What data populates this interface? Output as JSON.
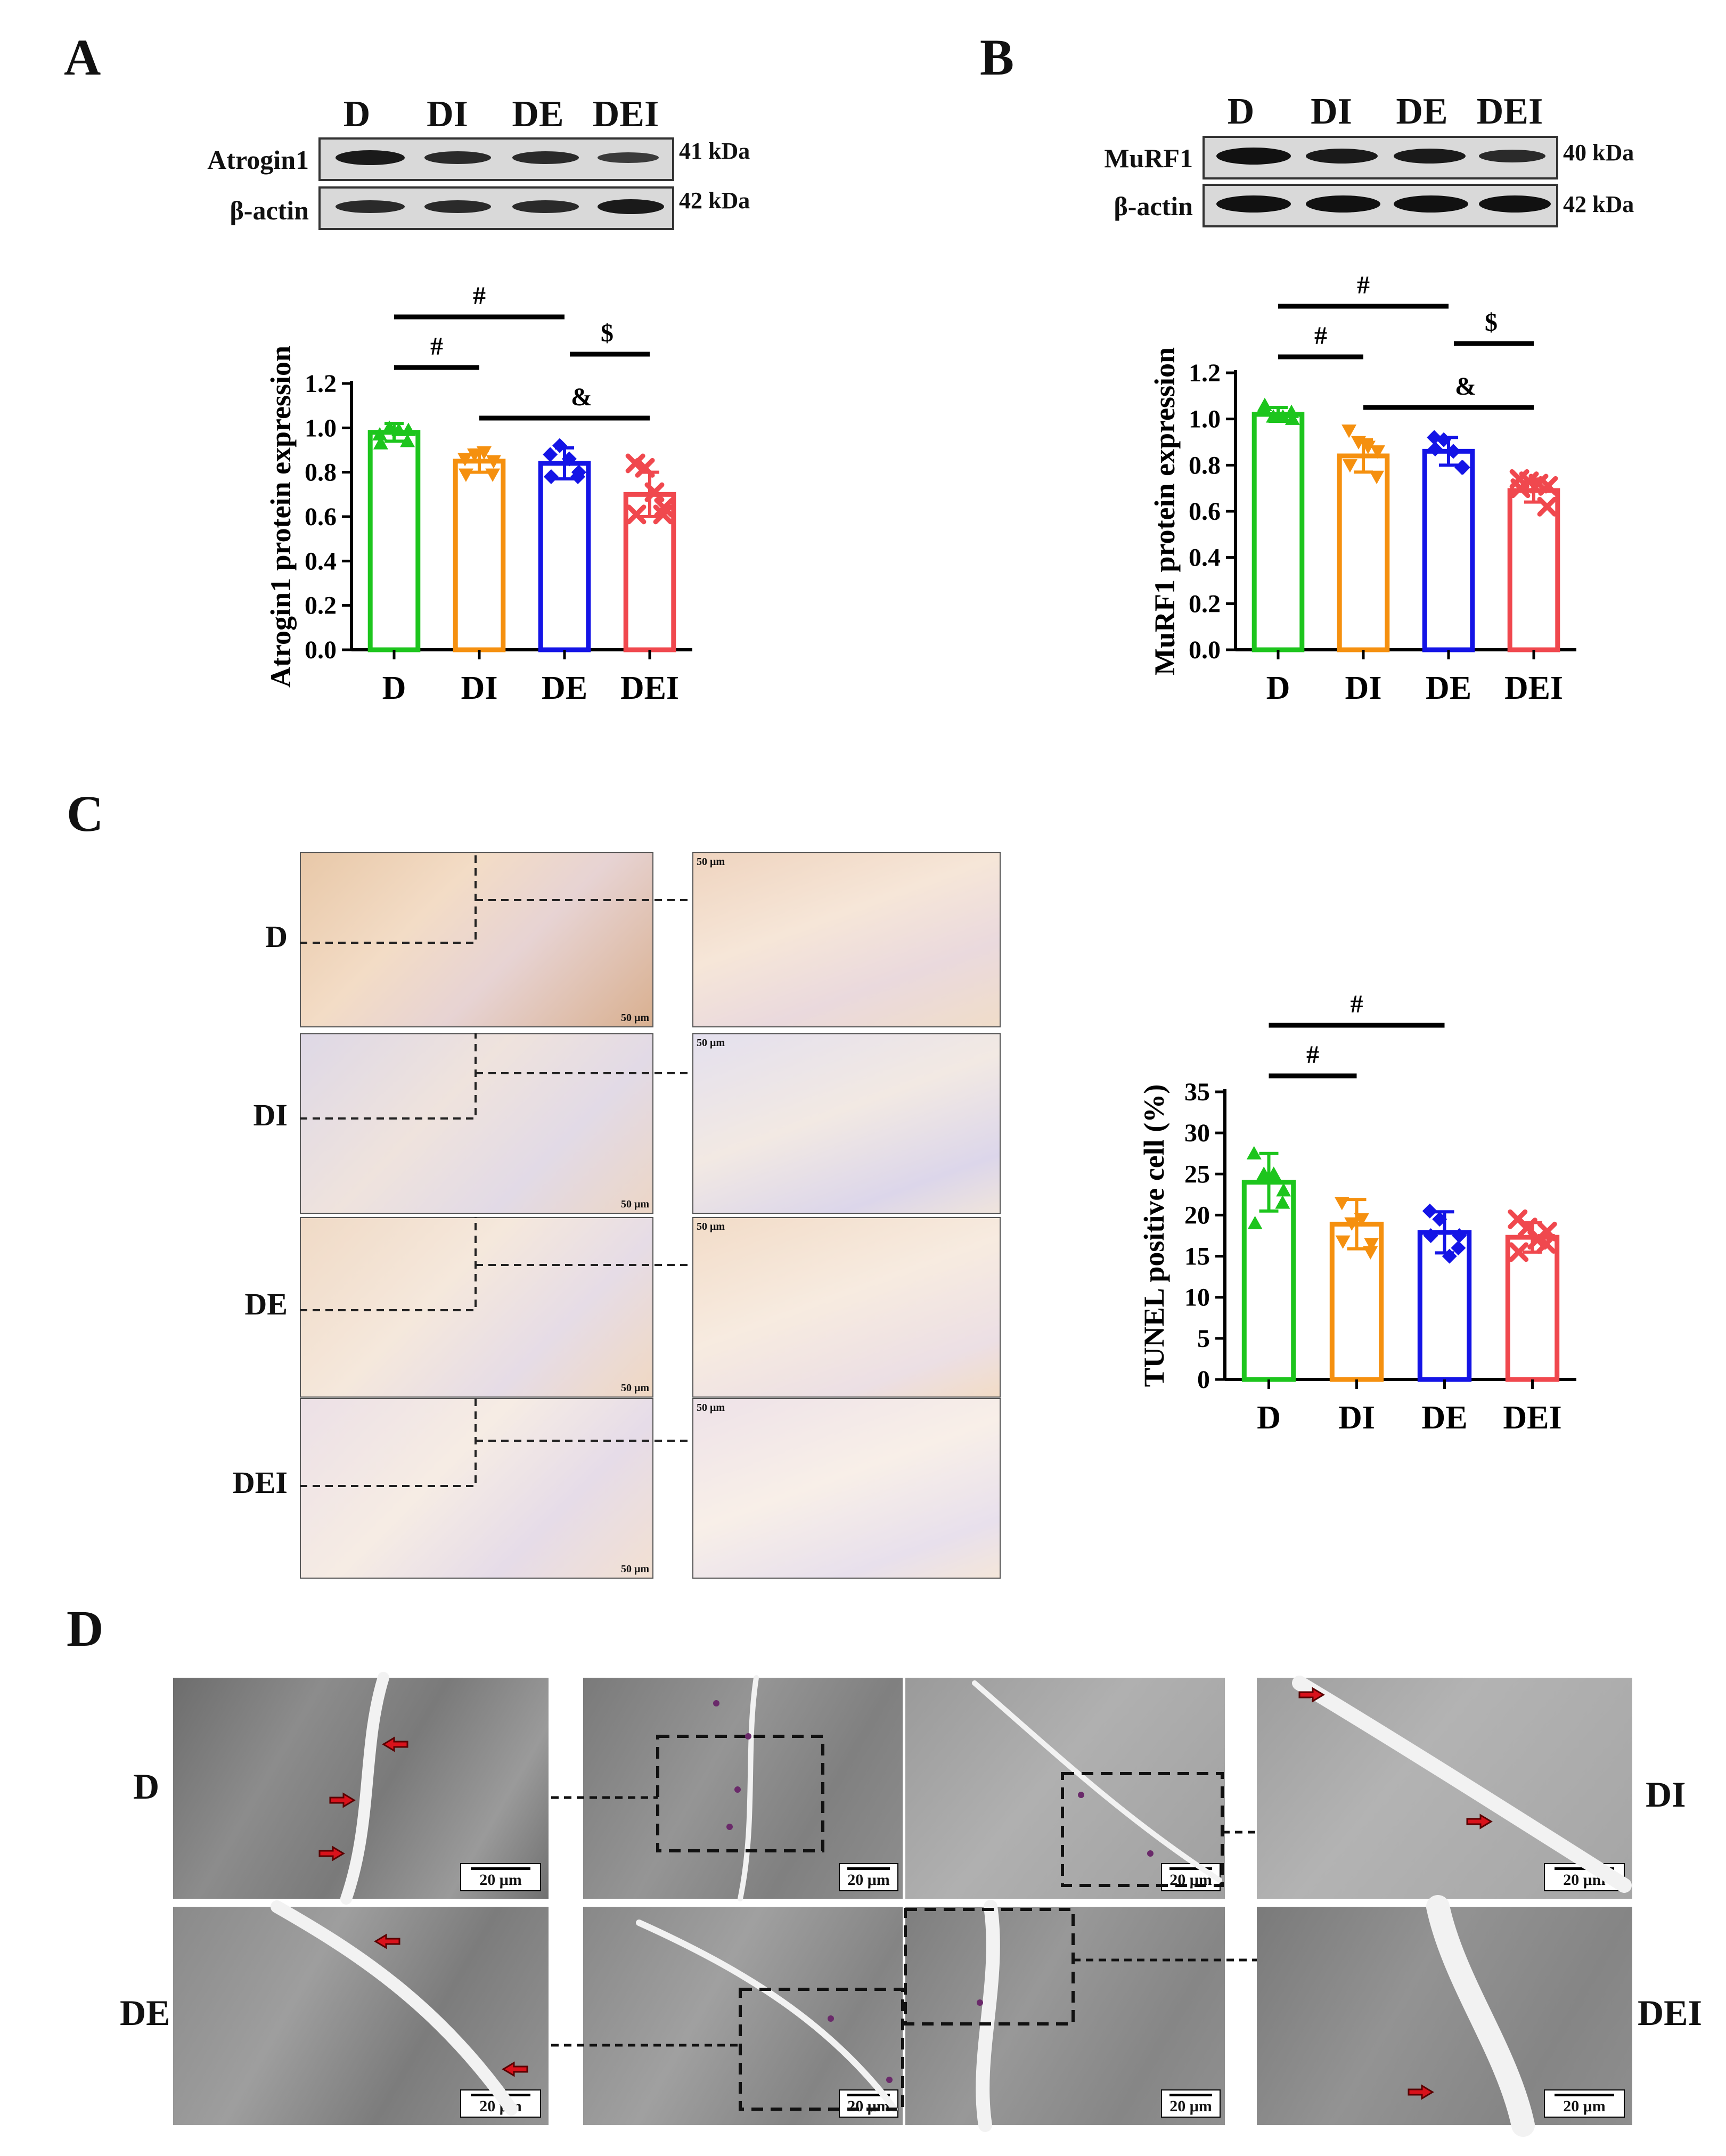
{
  "panels": {
    "a": "A",
    "b": "B",
    "c": "C",
    "d": "D"
  },
  "groups": [
    "D",
    "DI",
    "DE",
    "DEI"
  ],
  "blots": {
    "a": {
      "target": "Atrogin1",
      "control": "β-actin",
      "target_kda": "41 kDa",
      "control_kda": "42 kDa"
    },
    "b": {
      "target": "MuRF1",
      "control": "β-actin",
      "target_kda": "40 kDa",
      "control_kda": "42 kDa"
    }
  },
  "sig": {
    "hash": "#",
    "dollar": "$",
    "amp": "&"
  },
  "panel_c_rows": [
    "D",
    "DI",
    "DE",
    "DEI"
  ],
  "scale_50": "50 μm",
  "panel_d_labels": {
    "top_left": "D",
    "top_right": "DI",
    "bottom_left": "DE",
    "bottom_right": "DEI"
  },
  "scale_20": "20 μm",
  "colors": {
    "D": "#1dc51d",
    "DI": "#f5900f",
    "DE": "#1414e6",
    "DEI": "#f0484e"
  },
  "chart_data": [
    {
      "type": "bar",
      "title": "",
      "xlabel": "",
      "ylabel": "Atrogin1 protein expression",
      "categories": [
        "D",
        "DI",
        "DE",
        "DEI"
      ],
      "values": [
        0.98,
        0.85,
        0.84,
        0.7
      ],
      "errors": [
        0.04,
        0.05,
        0.07,
        0.1
      ],
      "points": [
        [
          0.97,
          1.0,
          0.99,
          0.94,
          0.93,
          0.99
        ],
        [
          0.86,
          0.88,
          0.85,
          0.79,
          0.79,
          0.89
        ],
        [
          0.88,
          0.92,
          0.8,
          0.78,
          0.78,
          0.86
        ],
        [
          0.84,
          0.82,
          0.64,
          0.61,
          0.61,
          0.71
        ]
      ],
      "markers": [
        "triangle-up",
        "triangle-down",
        "diamond",
        "x"
      ],
      "ylim": [
        0,
        1.2
      ],
      "yticks": [
        "0.0",
        "0.2",
        "0.4",
        "0.6",
        "0.8",
        "1.0",
        "1.2"
      ],
      "comparisons": [
        {
          "from": 0,
          "to": 1,
          "symbol": "#"
        },
        {
          "from": 0,
          "to": 2,
          "symbol": "#"
        },
        {
          "from": 2,
          "to": 3,
          "symbol": "$"
        },
        {
          "from": 1,
          "to": 3,
          "symbol": "&"
        }
      ]
    },
    {
      "type": "bar",
      "title": "",
      "xlabel": "",
      "ylabel": "MuRF1 protein expression",
      "categories": [
        "D",
        "DI",
        "DE",
        "DEI"
      ],
      "values": [
        1.02,
        0.84,
        0.86,
        0.69
      ],
      "errors": [
        0.03,
        0.07,
        0.06,
        0.05
      ],
      "points": [
        [
          1.05,
          1.01,
          1.0,
          1.03,
          1.06,
          1.01
        ],
        [
          0.95,
          0.9,
          0.86,
          0.75,
          0.8,
          0.88
        ],
        [
          0.92,
          0.91,
          0.79,
          0.79,
          0.87,
          0.86
        ],
        [
          0.74,
          0.73,
          0.71,
          0.62,
          0.7,
          0.72
        ]
      ],
      "markers": [
        "triangle-up",
        "triangle-down",
        "diamond",
        "x"
      ],
      "ylim": [
        0,
        1.2
      ],
      "yticks": [
        "0.0",
        "0.2",
        "0.4",
        "0.6",
        "0.8",
        "1.0",
        "1.2"
      ],
      "comparisons": [
        {
          "from": 0,
          "to": 1,
          "symbol": "#"
        },
        {
          "from": 0,
          "to": 2,
          "symbol": "#"
        },
        {
          "from": 2,
          "to": 3,
          "symbol": "$"
        },
        {
          "from": 1,
          "to": 3,
          "symbol": "&"
        }
      ]
    },
    {
      "type": "bar",
      "title": "",
      "xlabel": "",
      "ylabel": "TUNEL positive cell (%)",
      "categories": [
        "D",
        "DI",
        "DE",
        "DEI"
      ],
      "values": [
        24.0,
        18.9,
        17.9,
        17.3
      ],
      "errors": [
        3.5,
        3.0,
        2.5,
        1.8
      ],
      "points": [
        [
          27.5,
          25.0,
          23.0,
          21.5,
          19.0,
          25.0
        ],
        [
          21.5,
          19.0,
          16.5,
          15.5,
          16.8,
          19.5
        ],
        [
          20.5,
          19.5,
          17.5,
          16.0,
          17.5,
          15.0
        ],
        [
          19.5,
          18.5,
          18.0,
          16.5,
          15.5,
          17.0
        ]
      ],
      "markers": [
        "triangle-up",
        "triangle-down",
        "diamond",
        "x"
      ],
      "ylim": [
        0,
        35
      ],
      "yticks": [
        "0",
        "5",
        "10",
        "15",
        "20",
        "25",
        "30",
        "35"
      ],
      "comparisons": [
        {
          "from": 0,
          "to": 1,
          "symbol": "#"
        },
        {
          "from": 0,
          "to": 2,
          "symbol": "#"
        }
      ]
    }
  ]
}
